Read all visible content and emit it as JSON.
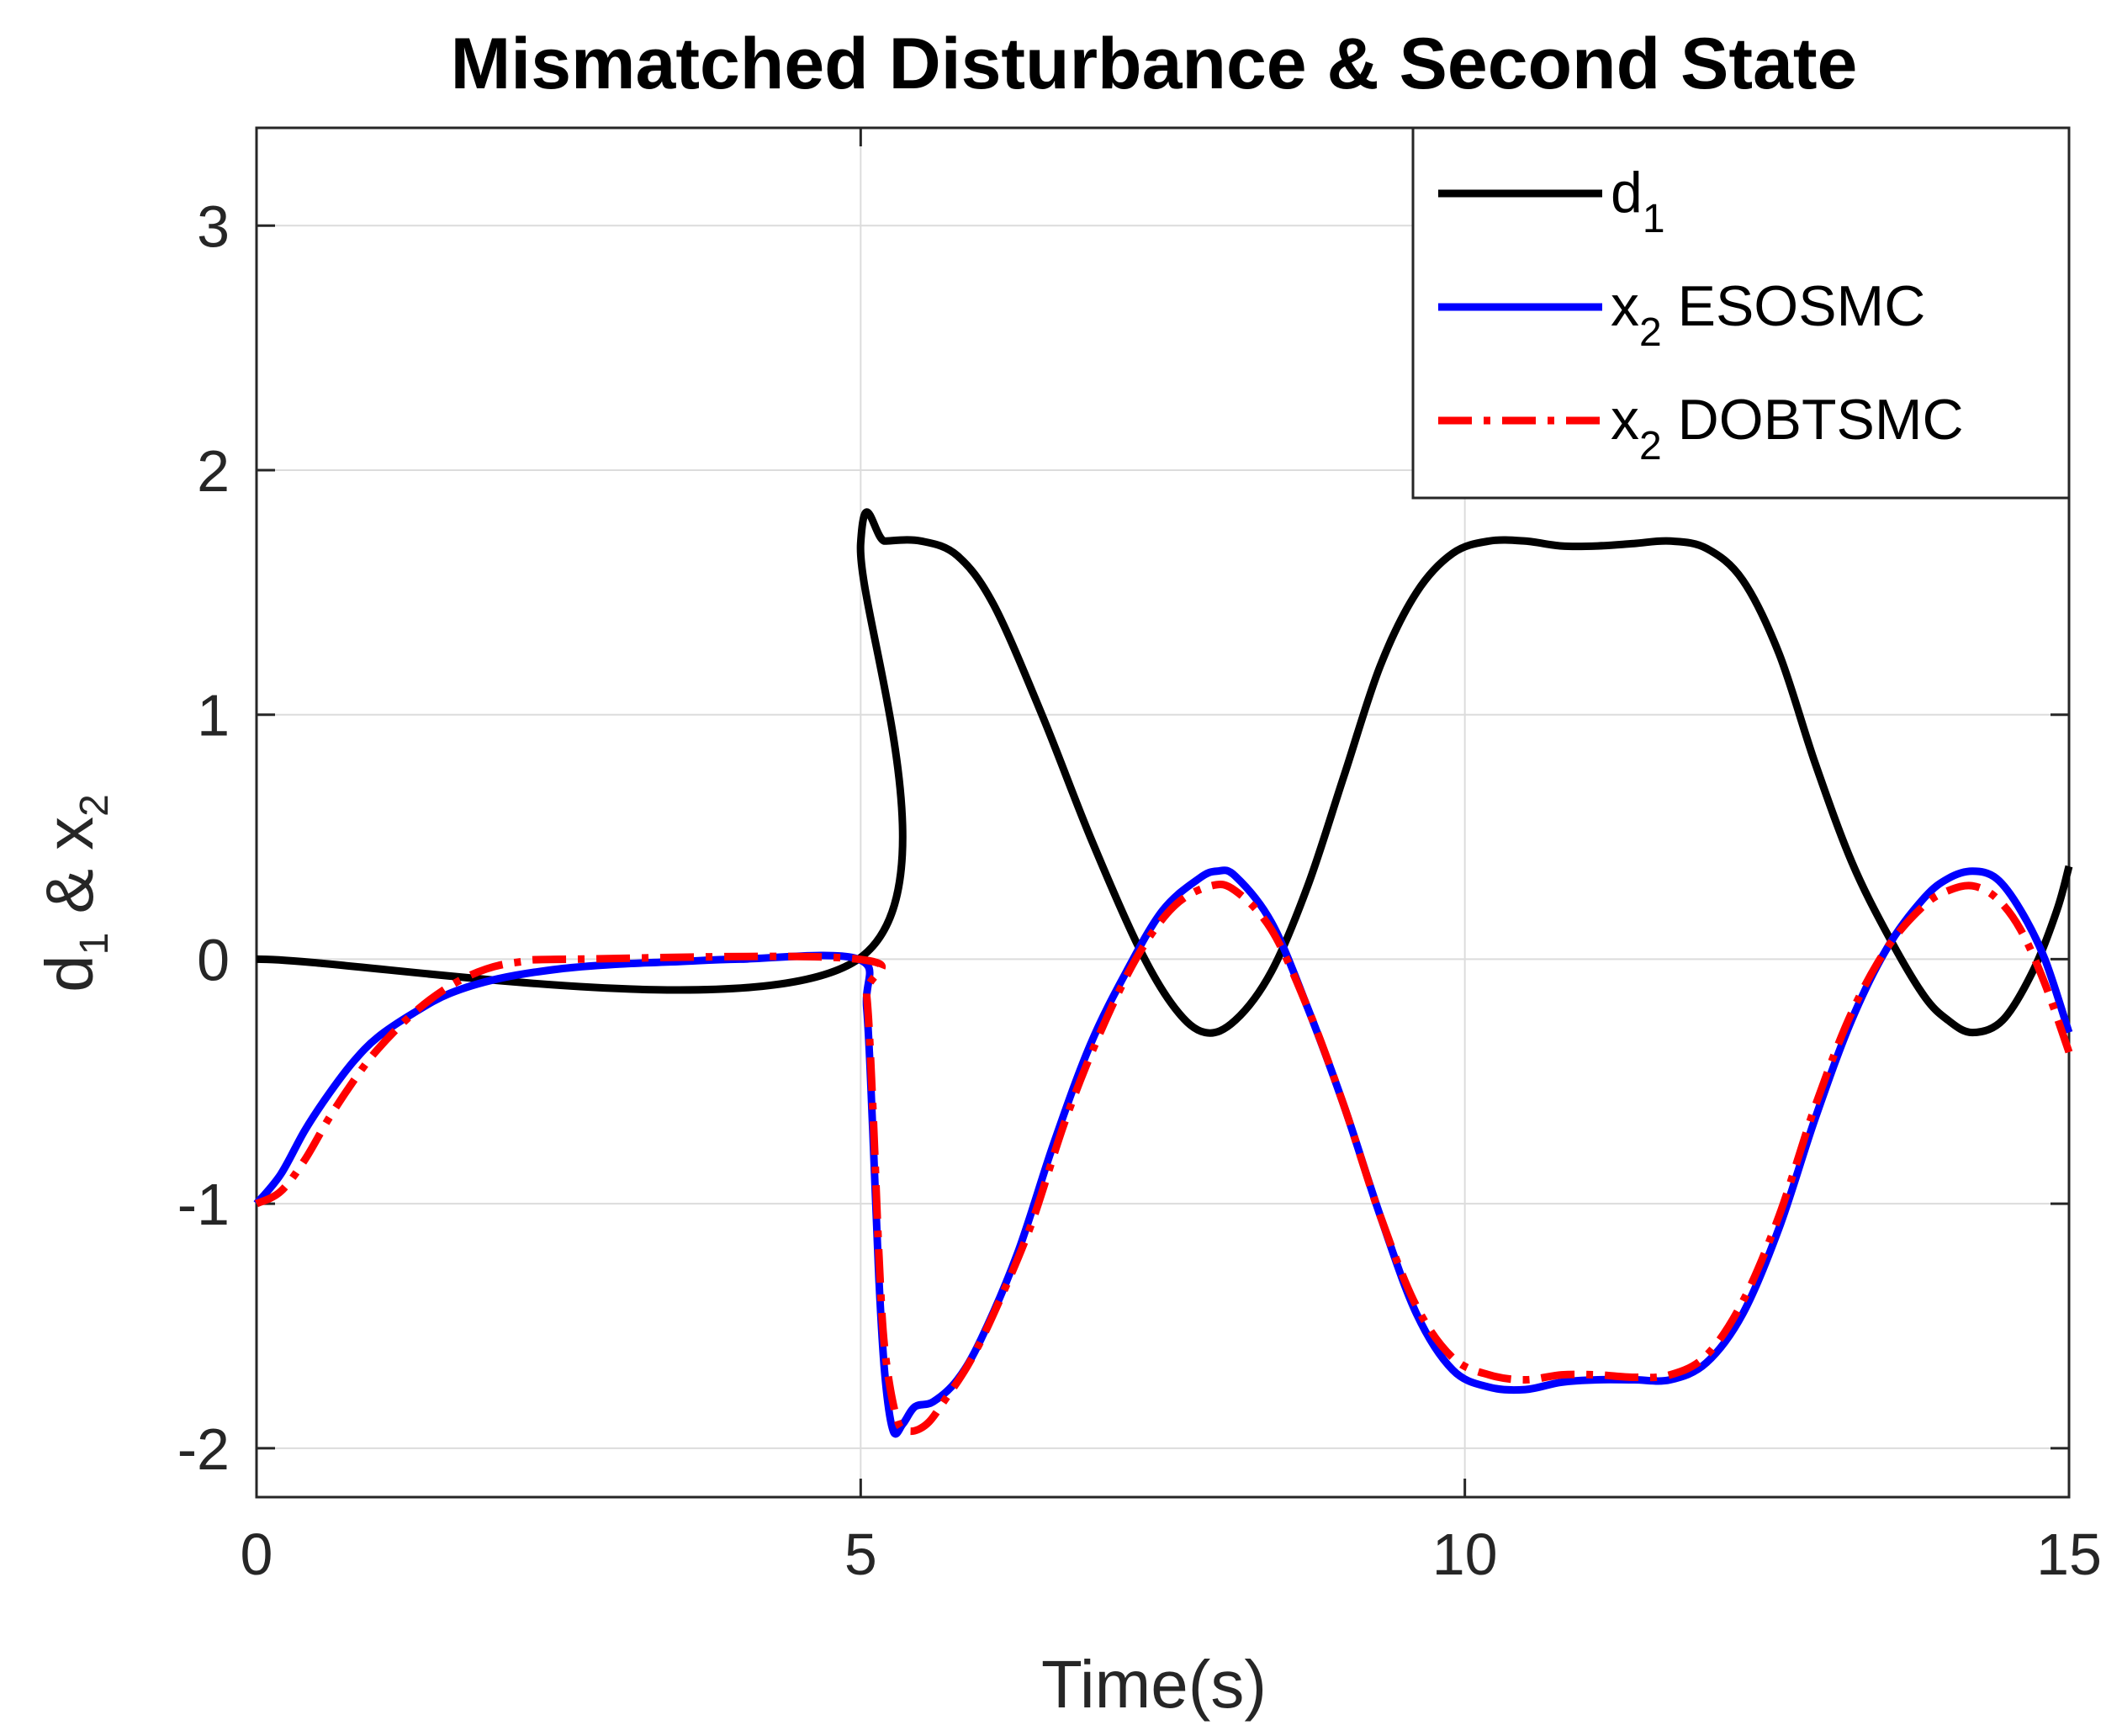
{
  "chart_data": {
    "type": "line",
    "title": "Mismatched Disturbance & Second State",
    "xlabel": "Time(s)",
    "ylabel": {
      "main": "d",
      "sub1": "1",
      "mid": " & x",
      "sub2": "2"
    },
    "xlim": [
      0,
      15
    ],
    "ylim": [
      -2.2,
      3.4
    ],
    "xticks": [
      0,
      5,
      10,
      15
    ],
    "yticks": [
      -2,
      -1,
      0,
      1,
      2,
      3
    ],
    "xtick_labels": [
      "0",
      "5",
      "10",
      "15"
    ],
    "ytick_labels": [
      "-2",
      "-1",
      "0",
      "1",
      "2",
      "3"
    ],
    "grid": true,
    "legend_position": "top-right",
    "series": [
      {
        "name": "d1",
        "label": "d",
        "label_sub": "1",
        "label_rest": "",
        "color": "#000000",
        "style": "solid",
        "points": [
          [
            0,
            0
          ],
          [
            4.98,
            0
          ],
          [
            5.0,
            1.7
          ],
          [
            5.2,
            1.71
          ],
          [
            5.5,
            1.71
          ],
          [
            5.8,
            1.65
          ],
          [
            6.1,
            1.45
          ],
          [
            6.5,
            1.0
          ],
          [
            6.9,
            0.5
          ],
          [
            7.3,
            0.05
          ],
          [
            7.6,
            -0.2
          ],
          [
            7.85,
            -0.3
          ],
          [
            8.1,
            -0.25
          ],
          [
            8.4,
            -0.05
          ],
          [
            8.7,
            0.3
          ],
          [
            9.0,
            0.75
          ],
          [
            9.3,
            1.2
          ],
          [
            9.6,
            1.5
          ],
          [
            9.9,
            1.66
          ],
          [
            10.2,
            1.71
          ],
          [
            10.5,
            1.71
          ],
          [
            10.8,
            1.69
          ],
          [
            11.1,
            1.69
          ],
          [
            11.4,
            1.7
          ],
          [
            11.7,
            1.71
          ],
          [
            12.0,
            1.68
          ],
          [
            12.3,
            1.55
          ],
          [
            12.6,
            1.25
          ],
          [
            12.9,
            0.8
          ],
          [
            13.2,
            0.4
          ],
          [
            13.5,
            0.1
          ],
          [
            13.8,
            -0.15
          ],
          [
            14.0,
            -0.25
          ],
          [
            14.2,
            -0.3
          ],
          [
            14.45,
            -0.25
          ],
          [
            14.7,
            -0.05
          ],
          [
            14.9,
            0.2
          ],
          [
            15.0,
            0.38
          ]
        ]
      },
      {
        "name": "x2 ESOSMC",
        "label": "x",
        "label_sub": "2",
        "label_rest": " ESOSMC",
        "color": "#0000ff",
        "style": "solid",
        "points": [
          [
            0,
            -1.0
          ],
          [
            0.2,
            -0.88
          ],
          [
            0.4,
            -0.7
          ],
          [
            0.6,
            -0.55
          ],
          [
            0.8,
            -0.42
          ],
          [
            1.0,
            -0.32
          ],
          [
            1.3,
            -0.22
          ],
          [
            1.6,
            -0.14
          ],
          [
            2.0,
            -0.08
          ],
          [
            2.5,
            -0.04
          ],
          [
            3.0,
            -0.02
          ],
          [
            3.5,
            -0.01
          ],
          [
            4.0,
            0
          ],
          [
            4.98,
            0
          ],
          [
            5.05,
            -0.2
          ],
          [
            5.1,
            -0.7
          ],
          [
            5.15,
            -1.3
          ],
          [
            5.2,
            -1.7
          ],
          [
            5.27,
            -1.93
          ],
          [
            5.35,
            -1.9
          ],
          [
            5.45,
            -1.83
          ],
          [
            5.6,
            -1.81
          ],
          [
            5.8,
            -1.72
          ],
          [
            6.0,
            -1.55
          ],
          [
            6.3,
            -1.2
          ],
          [
            6.6,
            -0.75
          ],
          [
            6.9,
            -0.35
          ],
          [
            7.2,
            -0.05
          ],
          [
            7.5,
            0.2
          ],
          [
            7.8,
            0.33
          ],
          [
            7.95,
            0.36
          ],
          [
            8.1,
            0.34
          ],
          [
            8.4,
            0.15
          ],
          [
            8.7,
            -0.2
          ],
          [
            9.0,
            -0.6
          ],
          [
            9.3,
            -1.05
          ],
          [
            9.6,
            -1.45
          ],
          [
            9.9,
            -1.68
          ],
          [
            10.2,
            -1.75
          ],
          [
            10.5,
            -1.76
          ],
          [
            10.8,
            -1.73
          ],
          [
            11.1,
            -1.72
          ],
          [
            11.4,
            -1.72
          ],
          [
            11.7,
            -1.72
          ],
          [
            12.0,
            -1.65
          ],
          [
            12.3,
            -1.45
          ],
          [
            12.6,
            -1.1
          ],
          [
            12.9,
            -0.65
          ],
          [
            13.2,
            -0.25
          ],
          [
            13.5,
            0.05
          ],
          [
            13.8,
            0.25
          ],
          [
            14.0,
            0.33
          ],
          [
            14.2,
            0.36
          ],
          [
            14.4,
            0.33
          ],
          [
            14.6,
            0.2
          ],
          [
            14.8,
            0.0
          ],
          [
            15.0,
            -0.3
          ]
        ]
      },
      {
        "name": "x2 DOBTSMC",
        "label": "x",
        "label_sub": "2",
        "label_rest": " DOBTSMC",
        "color": "#ff0000",
        "style": "dashdot",
        "points": [
          [
            0,
            -1.0
          ],
          [
            0.2,
            -0.95
          ],
          [
            0.4,
            -0.82
          ],
          [
            0.6,
            -0.65
          ],
          [
            0.8,
            -0.5
          ],
          [
            1.0,
            -0.37
          ],
          [
            1.3,
            -0.22
          ],
          [
            1.6,
            -0.11
          ],
          [
            1.9,
            -0.04
          ],
          [
            2.2,
            -0.01
          ],
          [
            2.6,
            0
          ],
          [
            4.98,
            0
          ],
          [
            5.05,
            -0.15
          ],
          [
            5.1,
            -0.6
          ],
          [
            5.15,
            -1.2
          ],
          [
            5.2,
            -1.6
          ],
          [
            5.3,
            -1.88
          ],
          [
            5.4,
            -1.93
          ],
          [
            5.55,
            -1.9
          ],
          [
            5.7,
            -1.8
          ],
          [
            5.9,
            -1.65
          ],
          [
            6.1,
            -1.45
          ],
          [
            6.4,
            -1.1
          ],
          [
            6.7,
            -0.65
          ],
          [
            7.0,
            -0.28
          ],
          [
            7.3,
            0.02
          ],
          [
            7.6,
            0.22
          ],
          [
            7.9,
            0.3
          ],
          [
            8.1,
            0.28
          ],
          [
            8.4,
            0.12
          ],
          [
            8.7,
            -0.2
          ],
          [
            9.0,
            -0.6
          ],
          [
            9.3,
            -1.05
          ],
          [
            9.6,
            -1.42
          ],
          [
            9.9,
            -1.63
          ],
          [
            10.2,
            -1.7
          ],
          [
            10.5,
            -1.72
          ],
          [
            10.8,
            -1.7
          ],
          [
            11.1,
            -1.7
          ],
          [
            11.4,
            -1.71
          ],
          [
            11.7,
            -1.7
          ],
          [
            12.0,
            -1.62
          ],
          [
            12.3,
            -1.4
          ],
          [
            12.6,
            -1.05
          ],
          [
            12.9,
            -0.6
          ],
          [
            13.2,
            -0.22
          ],
          [
            13.5,
            0.05
          ],
          [
            13.8,
            0.22
          ],
          [
            14.0,
            0.28
          ],
          [
            14.2,
            0.3
          ],
          [
            14.4,
            0.25
          ],
          [
            14.6,
            0.12
          ],
          [
            14.8,
            -0.1
          ],
          [
            15.0,
            -0.38
          ]
        ]
      }
    ]
  }
}
